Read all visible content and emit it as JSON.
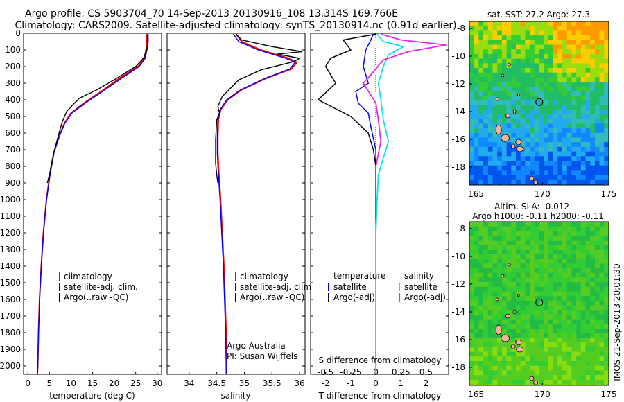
{
  "header": {
    "line1": "Argo profile: CS 5903704_70 14-Sep-2013 20130916_108 13.314S 169.766E",
    "line2": "Climatology: CARS2009. Satellite-adjusted climatology: synTS_20130914.nc (0.91d earlier)"
  },
  "colors": {
    "climatology": "#ff0000",
    "satellite_adj": "#0000ff",
    "argo": "#000000",
    "salinity_satellite": "#00e5ee",
    "salinity_argo": "#ee22ee",
    "land": "#f4b49a"
  },
  "chart_data": [
    {
      "name": "temperature",
      "type": "line",
      "xlabel": "temperature (deg C)",
      "ylim": [
        2050,
        0
      ],
      "xlim": [
        -1,
        31
      ],
      "yticks": [
        0,
        100,
        200,
        300,
        400,
        500,
        600,
        700,
        800,
        900,
        1000,
        1100,
        1200,
        1300,
        1400,
        1500,
        1600,
        1700,
        1800,
        1900,
        2000
      ],
      "xticks": [
        0,
        5,
        10,
        15,
        20,
        25,
        30
      ],
      "legend": [
        "climatology",
        "satellite-adj. clim.",
        "Argo(..raw -QC)"
      ],
      "legend_placement": "lower-center",
      "series": [
        {
          "label_index": 0,
          "color": "#ff0000",
          "points": [
            [
              27.6,
              5
            ],
            [
              27.6,
              50
            ],
            [
              27.4,
              100
            ],
            [
              27.0,
              150
            ],
            [
              25.5,
              200
            ],
            [
              21,
              275
            ],
            [
              17,
              350
            ],
            [
              13,
              420
            ],
            [
              10,
              480
            ],
            [
              8.5,
              540
            ],
            [
              7.2,
              620
            ],
            [
              6.0,
              720
            ],
            [
              5.1,
              850
            ],
            [
              4.3,
              1000
            ],
            [
              3.6,
              1200
            ],
            [
              3.1,
              1400
            ],
            [
              2.7,
              1600
            ],
            [
              2.45,
              1800
            ],
            [
              2.3,
              2000
            ],
            [
              2.2,
              2050
            ]
          ]
        },
        {
          "label_index": 1,
          "color": "#0000ff",
          "points": [
            [
              27.9,
              5
            ],
            [
              27.9,
              50
            ],
            [
              27.6,
              100
            ],
            [
              27.2,
              150
            ],
            [
              25.8,
              200
            ],
            [
              21.5,
              275
            ],
            [
              17.3,
              350
            ],
            [
              13.3,
              420
            ],
            [
              10.2,
              480
            ],
            [
              8.6,
              540
            ],
            [
              7.3,
              620
            ],
            [
              6.05,
              720
            ],
            [
              5.15,
              850
            ],
            [
              4.33,
              1000
            ],
            [
              3.62,
              1200
            ],
            [
              3.12,
              1400
            ],
            [
              2.72,
              1600
            ],
            [
              2.47,
              1800
            ],
            [
              2.32,
              2000
            ],
            [
              2.22,
              2050
            ]
          ]
        },
        {
          "label_index": 2,
          "color": "#000000",
          "points": [
            [
              27.7,
              5
            ],
            [
              27.8,
              50
            ],
            [
              27.6,
              100
            ],
            [
              26.8,
              150
            ],
            [
              25,
              200
            ],
            [
              20,
              280
            ],
            [
              16,
              340
            ],
            [
              12,
              390
            ],
            [
              10.8,
              420
            ],
            [
              9,
              470
            ],
            [
              8,
              530
            ],
            [
              7,
              620
            ],
            [
              6.0,
              720
            ],
            [
              5.0,
              850
            ],
            [
              4.5,
              900
            ]
          ]
        }
      ]
    },
    {
      "name": "salinity",
      "type": "line",
      "xlabel": "salinity",
      "ylim": [
        2050,
        0
      ],
      "xlim": [
        33.6,
        36.1
      ],
      "xticks": [
        34,
        34.5,
        35,
        35.5,
        36
      ],
      "xticklabels": [
        "34",
        "34.5",
        "35",
        "35.5",
        "36"
      ],
      "legend": [
        "climatology",
        "satellite-adj. clim.",
        "Argo(..raw -QC)"
      ],
      "legend_placement": "lower-center",
      "annotation": [
        "Argo Australia",
        "PI: Susan Wijffels"
      ],
      "series": [
        {
          "label_index": 0,
          "color": "#ff0000",
          "points": [
            [
              34.85,
              5
            ],
            [
              34.95,
              50
            ],
            [
              35.3,
              100
            ],
            [
              35.8,
              150
            ],
            [
              35.95,
              175
            ],
            [
              35.85,
              215
            ],
            [
              35.4,
              270
            ],
            [
              34.95,
              340
            ],
            [
              34.7,
              400
            ],
            [
              34.57,
              460
            ],
            [
              34.53,
              520
            ],
            [
              34.52,
              620
            ],
            [
              34.52,
              720
            ],
            [
              34.54,
              850
            ],
            [
              34.57,
              1000
            ],
            [
              34.6,
              1200
            ],
            [
              34.63,
              1400
            ],
            [
              34.65,
              1600
            ],
            [
              34.67,
              1800
            ],
            [
              34.68,
              2000
            ],
            [
              34.68,
              2050
            ]
          ]
        },
        {
          "label_index": 1,
          "color": "#0000ff",
          "points": [
            [
              34.8,
              5
            ],
            [
              34.9,
              50
            ],
            [
              35.25,
              100
            ],
            [
              35.75,
              150
            ],
            [
              35.92,
              175
            ],
            [
              35.82,
              215
            ],
            [
              35.38,
              270
            ],
            [
              34.93,
              340
            ],
            [
              34.68,
              400
            ],
            [
              34.56,
              460
            ],
            [
              34.52,
              520
            ],
            [
              34.51,
              620
            ],
            [
              34.51,
              720
            ],
            [
              34.53,
              850
            ],
            [
              34.56,
              1000
            ],
            [
              34.59,
              1200
            ],
            [
              34.62,
              1400
            ],
            [
              34.64,
              1600
            ],
            [
              34.66,
              1800
            ],
            [
              34.67,
              2000
            ],
            [
              34.67,
              2050
            ]
          ]
        },
        {
          "label_index": 2,
          "color": "#000000",
          "points": [
            [
              34.85,
              5
            ],
            [
              34.95,
              40
            ],
            [
              35.5,
              80
            ],
            [
              36.05,
              110
            ],
            [
              35.6,
              125
            ],
            [
              36.0,
              150
            ],
            [
              35.9,
              170
            ],
            [
              35.3,
              220
            ],
            [
              34.9,
              280
            ],
            [
              34.75,
              330
            ],
            [
              34.6,
              380
            ],
            [
              34.52,
              440
            ],
            [
              34.55,
              480
            ],
            [
              34.5,
              520
            ],
            [
              34.48,
              640
            ],
            [
              34.48,
              780
            ],
            [
              34.5,
              850
            ],
            [
              34.52,
              900
            ]
          ]
        }
      ]
    },
    {
      "name": "difference",
      "type": "line",
      "xlabel_T": "T difference from climatology",
      "xlabel_S": "S difference from climatology",
      "ylim": [
        2050,
        0
      ],
      "xlim": [
        -2.6,
        2.9
      ],
      "xticks_T": [
        -2,
        -1,
        0,
        1,
        2
      ],
      "xticks_S": [
        -0.5,
        -0.25,
        0,
        0.25,
        0.5
      ],
      "xticklabels_S": [
        "-0.5",
        "-0.25",
        "0",
        "0.25",
        "0.5"
      ],
      "legend_temperature_title": "temperature",
      "legend_salinity_title": "salinity",
      "legend_temperature": [
        "satellite",
        "Argo(-adj)"
      ],
      "legend_salinity": [
        "satellite",
        "Argo(-adj)"
      ],
      "series": [
        {
          "name": "T satellite",
          "color": "#0000ff",
          "points": [
            [
              -0.1,
              5
            ],
            [
              -0.2,
              40
            ],
            [
              -0.4,
              100
            ],
            [
              -0.5,
              200
            ],
            [
              -0.3,
              300
            ],
            [
              -0.8,
              350
            ],
            [
              -0.7,
              420
            ],
            [
              -0.3,
              480
            ],
            [
              -0.2,
              560
            ],
            [
              0,
              700
            ],
            [
              0,
              2050
            ]
          ]
        },
        {
          "name": "T Argo(-adj)",
          "color": "#000000",
          "points": [
            [
              0,
              5
            ],
            [
              -1.3,
              40
            ],
            [
              -1.0,
              100
            ],
            [
              -1.8,
              150
            ],
            [
              -2.0,
              200
            ],
            [
              -1.6,
              300
            ],
            [
              -2.3,
              400
            ],
            [
              -1.0,
              500
            ],
            [
              -0.3,
              600
            ],
            [
              -0.1,
              700
            ],
            [
              0,
              800
            ]
          ]
        },
        {
          "name": "S satellite",
          "color": "#00e5ee",
          "points": [
            [
              0.05,
              5
            ],
            [
              0.3,
              50
            ],
            [
              1.1,
              80
            ],
            [
              0.5,
              130
            ],
            [
              0.3,
              200
            ],
            [
              0.1,
              300
            ],
            [
              0.2,
              400
            ],
            [
              0.3,
              520
            ],
            [
              0.5,
              650
            ],
            [
              0.3,
              750
            ],
            [
              0.1,
              850
            ],
            [
              0.05,
              1000
            ],
            [
              0,
              1200
            ],
            [
              0,
              2050
            ]
          ]
        },
        {
          "name": "S Argo(-adj)",
          "color": "#ee22ee",
          "points": [
            [
              0.2,
              5
            ],
            [
              1.0,
              40
            ],
            [
              2.8,
              70
            ],
            [
              1.3,
              110
            ],
            [
              0.3,
              160
            ],
            [
              -0.2,
              250
            ],
            [
              -0.5,
              300
            ],
            [
              0,
              420
            ],
            [
              0.1,
              520
            ],
            [
              0.2,
              650
            ],
            [
              0,
              800
            ]
          ]
        }
      ]
    },
    {
      "name": "sst_map",
      "type": "heatmap",
      "title": "sat. SST: 27.2 Argo: 27.3",
      "xlim": [
        164.5,
        175
      ],
      "ylim": [
        -19.3,
        -7.5
      ],
      "xticks": [
        165,
        170,
        175
      ],
      "yticks": [
        -8,
        -10,
        -12,
        -14,
        -16,
        -18
      ],
      "float_position": [
        169.766,
        -13.314
      ]
    },
    {
      "name": "sla_map",
      "type": "heatmap",
      "title_line1": "Altim. SLA: -0.012",
      "title_line2": "Argo h1000: -0.11 h2000: -0.11",
      "xlim": [
        164.5,
        175
      ],
      "ylim": [
        -19.3,
        -7.5
      ],
      "xticks": [
        165,
        170,
        175
      ],
      "yticks": [
        -8,
        -10,
        -12,
        -14,
        -16,
        -18
      ],
      "float_position": [
        169.766,
        -13.314
      ]
    }
  ],
  "footer": {
    "side_text": "IMOS 21-Sep-2013 20:01:30"
  }
}
